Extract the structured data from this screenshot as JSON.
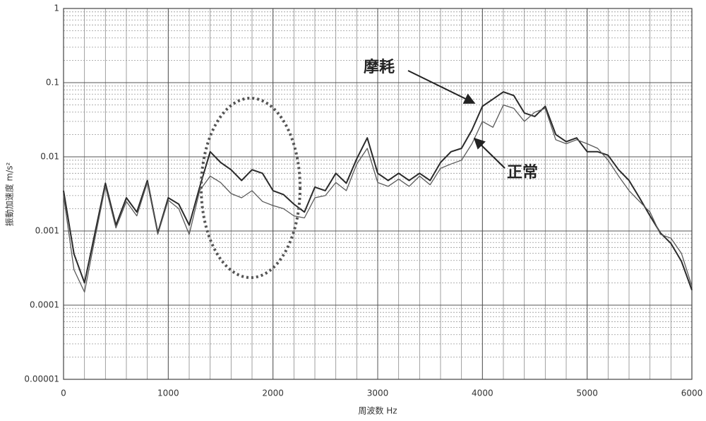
{
  "chart_data": {
    "type": "line",
    "xlabel": "周波数 Hz",
    "ylabel": "振動加速度 m/s²",
    "log_y": true,
    "grid": true,
    "x": [
      0,
      100,
      200,
      300,
      400,
      500,
      600,
      700,
      800,
      900,
      1000,
      1100,
      1200,
      1300,
      1400,
      1500,
      1600,
      1700,
      1800,
      1900,
      2000,
      2100,
      2200,
      2300,
      2400,
      2500,
      2600,
      2700,
      2800,
      2900,
      3000,
      3100,
      3200,
      3300,
      3400,
      3500,
      3600,
      3700,
      3800,
      3900,
      4000,
      4100,
      4200,
      4300,
      4400,
      4500,
      4600,
      4700,
      4800,
      4900,
      5000,
      5100,
      5200,
      5300,
      5400,
      5500,
      5600,
      5700,
      5800,
      5900,
      6000
    ],
    "series": [
      {
        "name": "摩耗",
        "color": "#2a2a2a",
        "values": [
          0.0035,
          0.00049,
          0.0002,
          0.00094,
          0.0044,
          0.0012,
          0.0028,
          0.0018,
          0.0048,
          0.00094,
          0.0028,
          0.0023,
          0.0012,
          0.0039,
          0.0117,
          0.0084,
          0.0067,
          0.0048,
          0.0067,
          0.006,
          0.0035,
          0.0031,
          0.0023,
          0.0018,
          0.0039,
          0.0035,
          0.006,
          0.0044,
          0.0094,
          0.018,
          0.006,
          0.0048,
          0.006,
          0.0048,
          0.006,
          0.0048,
          0.0084,
          0.0117,
          0.013,
          0.023,
          0.048,
          0.06,
          0.075,
          0.067,
          0.039,
          0.035,
          0.048,
          0.02,
          0.016,
          0.018,
          0.0117,
          0.0117,
          0.0105,
          0.0067,
          0.0048,
          0.0028,
          0.0016,
          0.00094,
          0.00068,
          0.00039,
          0.00016
        ]
      },
      {
        "name": "正常",
        "color": "#5a5a5a",
        "values": [
          0.003,
          0.0003,
          0.00015,
          0.0008,
          0.004,
          0.0011,
          0.0025,
          0.0016,
          0.0045,
          0.0009,
          0.0026,
          0.002,
          0.0009,
          0.0035,
          0.0055,
          0.0045,
          0.0032,
          0.0028,
          0.0035,
          0.0025,
          0.0022,
          0.002,
          0.0016,
          0.0015,
          0.0028,
          0.003,
          0.0045,
          0.0035,
          0.008,
          0.013,
          0.0045,
          0.004,
          0.005,
          0.004,
          0.0055,
          0.0042,
          0.007,
          0.008,
          0.009,
          0.015,
          0.03,
          0.025,
          0.05,
          0.045,
          0.03,
          0.04,
          0.045,
          0.017,
          0.015,
          0.017,
          0.015,
          0.013,
          0.009,
          0.0055,
          0.0035,
          0.0025,
          0.0018,
          0.0009,
          0.0008,
          0.0005,
          0.00018
        ]
      }
    ],
    "xlim": [
      0,
      6000
    ],
    "xticks": [
      0,
      1000,
      2000,
      3000,
      4000,
      5000,
      6000
    ],
    "ylim": [
      1e-05,
      1
    ],
    "yticks": [
      {
        "value": 1e-05,
        "label": "0.00001"
      },
      0.0001,
      0.001,
      0.01,
      0.1,
      1
    ]
  }
}
